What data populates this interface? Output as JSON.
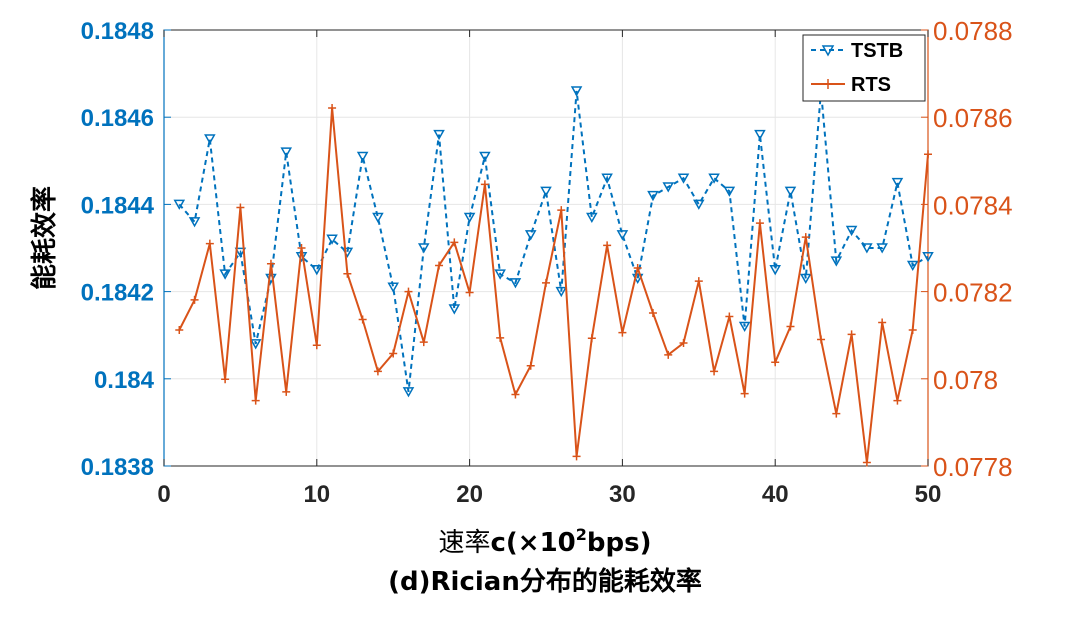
{
  "chart_data": {
    "type": "line",
    "title": "(d)Rician分布的能耗效率",
    "xlabel": "速率c(×10²bps)",
    "xlabel_parts": [
      "速率",
      "c(×10",
      "2",
      "bps)"
    ],
    "ylabel": "能耗效率",
    "xlim": [
      0,
      50
    ],
    "ylim_left": [
      0.1838,
      0.1848
    ],
    "ylim_right": [
      0.0778,
      0.0788
    ],
    "x_ticks": [
      "0",
      "10",
      "20",
      "30",
      "40",
      "50"
    ],
    "y_left_ticks": [
      "0.1838",
      "0.184",
      "0.1842",
      "0.1844",
      "0.1846",
      "0.1848"
    ],
    "y_right_ticks": [
      "0.0778",
      "0.078",
      "0.0782",
      "0.0784",
      "0.0786",
      "0.0788"
    ],
    "grid": true,
    "legend_position": "top-right",
    "colors": {
      "TSTB": "#0072BD",
      "RTS": "#D95319"
    },
    "x": [
      1,
      2,
      3,
      4,
      5,
      6,
      7,
      8,
      9,
      10,
      11,
      12,
      13,
      14,
      15,
      16,
      17,
      18,
      19,
      20,
      21,
      22,
      23,
      24,
      25,
      26,
      27,
      28,
      29,
      30,
      31,
      32,
      33,
      34,
      35,
      36,
      37,
      38,
      39,
      40,
      41,
      42,
      43,
      44,
      45,
      46,
      47,
      48,
      49,
      50
    ],
    "series": [
      {
        "name": "TSTB",
        "axis": "left",
        "style": "dashed",
        "marker": "triangle-down",
        "values": [
          0.1844,
          0.18436,
          0.18455,
          0.18424,
          0.18429,
          0.18408,
          0.18423,
          0.18452,
          0.18428,
          0.18425,
          0.18432,
          0.18429,
          0.18451,
          0.18437,
          0.18421,
          0.18397,
          0.1843,
          0.18456,
          0.18416,
          0.18437,
          0.18451,
          0.18424,
          0.18422,
          0.18433,
          0.18443,
          0.1842,
          0.18466,
          0.18437,
          0.18446,
          0.18433,
          0.18423,
          0.18442,
          0.18444,
          0.18446,
          0.1844,
          0.18446,
          0.18443,
          0.18412,
          0.18456,
          0.18425,
          0.18443,
          0.18423,
          0.18466,
          0.18427,
          0.18434,
          0.1843,
          0.1843,
          0.18445,
          0.18426,
          0.18428
        ]
      },
      {
        "name": "RTS",
        "axis": "right",
        "style": "solid",
        "marker": "plus",
        "values": [
          0.078112,
          0.078181,
          0.07831,
          0.077999,
          0.078393,
          0.07795,
          0.078264,
          0.07797,
          0.0783,
          0.078077,
          0.078621,
          0.078241,
          0.078136,
          0.078017,
          0.078058,
          0.0782,
          0.078084,
          0.07826,
          0.078313,
          0.078198,
          0.078446,
          0.078094,
          0.077964,
          0.07803,
          0.07822,
          0.078387,
          0.077822,
          0.078093,
          0.078306,
          0.078106,
          0.078254,
          0.078151,
          0.078055,
          0.078082,
          0.078224,
          0.078017,
          0.078143,
          0.077966,
          0.078357,
          0.078038,
          0.07812,
          0.078325,
          0.07809,
          0.07792,
          0.078102,
          0.077808,
          0.078129,
          0.07795,
          0.078112,
          0.078515
        ]
      }
    ]
  }
}
